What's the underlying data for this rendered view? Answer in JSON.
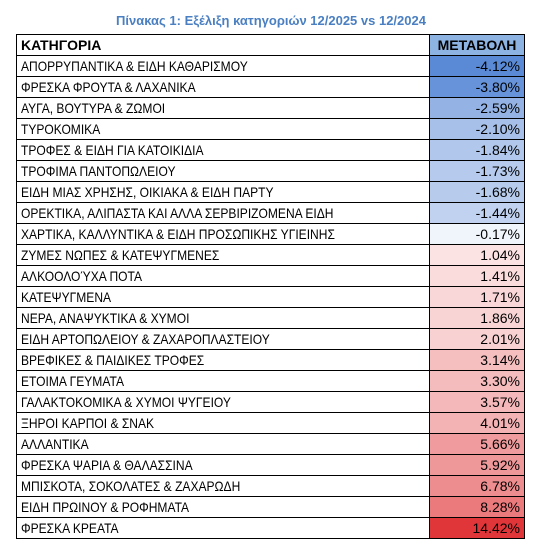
{
  "caption": "Πίνακας 1: Εξέλιξη κατηγοριών 12/2025 vs 12/2024",
  "table": {
    "headers": {
      "category": "ΚΑΤΗΓΟΡΙΑ",
      "change": "ΜΕΤΑΒΟΛΗ"
    },
    "rows": [
      {
        "category": "ΑΠΟΡΡΥΠΑΝΤΙΚΑ & ΕΙΔΗ ΚΑΘΑΡΙΣΜΟΥ",
        "change": "-4.12%",
        "value": -4.12
      },
      {
        "category": "ΦΡΕΣΚΑ ΦΡΟΥΤΑ & ΛΑΧΑΝΙΚΑ",
        "change": "-3.80%",
        "value": -3.8
      },
      {
        "category": "ΑΥΓΑ, ΒΟΥΤΥΡΑ & ΖΩΜΟΙ",
        "change": "-2.59%",
        "value": -2.59
      },
      {
        "category": "ΤΥΡΟΚΟΜΙΚΑ",
        "change": "-2.10%",
        "value": -2.1
      },
      {
        "category": "ΤΡΟΦΕΣ & ΕΙΔΗ ΓΙΑ ΚΑΤΟΙΚΙΔΙΑ",
        "change": "-1.84%",
        "value": -1.84
      },
      {
        "category": "ΤΡΟΦΙΜΑ ΠΑΝΤΟΠΩΛΕΙΟΥ",
        "change": "-1.73%",
        "value": -1.73
      },
      {
        "category": "ΕΙΔΗ ΜΙΑΣ ΧΡΗΣΗΣ, ΟΙΚΙΑΚΑ & ΕΙΔΗ ΠΑΡΤΥ",
        "change": "-1.68%",
        "value": -1.68
      },
      {
        "category": "ΟΡΕΚΤΙΚΑ, ΑΛΙΠΑΣΤΑ ΚΑΙ ΑΛΛΑ ΣΕΡΒΙΡΙΖΟΜΕΝΑ ΕΙΔΗ",
        "change": "-1.44%",
        "value": -1.44
      },
      {
        "category": "ΧΑΡΤΙΚΑ, ΚΑΛΛΥΝΤΙΚΑ & ΕΙΔΗ ΠΡΟΣΩΠΙΚΗΣ ΥΓΙΕΙΝΗΣ",
        "change": "-0.17%",
        "value": -0.17
      },
      {
        "category": "ΖΥΜΕΣ ΝΩΠΕΣ & ΚΑΤΕΨΥΓΜΕΝΕΣ",
        "change": "1.04%",
        "value": 1.04
      },
      {
        "category": "ΑΛΚΟΟΛΟΎΧΑ ΠΟΤΑ",
        "change": "1.41%",
        "value": 1.41
      },
      {
        "category": "ΚΑΤΕΨΥΓΜΕΝΑ",
        "change": "1.71%",
        "value": 1.71
      },
      {
        "category": "ΝΕΡΑ, ΑΝΑΨΥΚΤΙΚΑ & ΧΥΜΟΙ",
        "change": "1.86%",
        "value": 1.86
      },
      {
        "category": "ΕΙΔΗ ΑΡΤΟΠΩΛΕΙΟΥ & ΖΑΧΑΡΟΠΛΑΣΤΕΙΟΥ",
        "change": "2.01%",
        "value": 2.01
      },
      {
        "category": "ΒΡΕΦΙΚΕΣ & ΠΑΙΔΙΚΕΣ ΤΡΟΦΕΣ",
        "change": "3.14%",
        "value": 3.14
      },
      {
        "category": "ΕΤΟΙΜΑ ΓΕΥΜΑΤΑ",
        "change": "3.30%",
        "value": 3.3
      },
      {
        "category": "ΓΑΛΑΚΤΟΚΟΜΙΚΑ & ΧΥΜΟΙ ΨΥΓΕΙΟΥ",
        "change": "3.57%",
        "value": 3.57
      },
      {
        "category": "ΞΗΡΟΙ ΚΑΡΠΟΙ & ΣΝΑΚ",
        "change": "4.01%",
        "value": 4.01
      },
      {
        "category": "ΑΛΛΑΝΤΙΚΑ",
        "change": "5.66%",
        "value": 5.66
      },
      {
        "category": "ΦΡΕΣΚΑ ΨΑΡΙΑ & ΘΑΛΑΣΣΙΝΑ",
        "change": "5.92%",
        "value": 5.92
      },
      {
        "category": "ΜΠΙΣΚΟΤΑ, ΣΟΚΟΛΑΤΕΣ & ΖΑΧΑΡΩΔΗ",
        "change": "6.78%",
        "value": 6.78
      },
      {
        "category": "ΕΙΔΗ ΠΡΩΙΝΟΥ & ΡΟΦΗΜΑΤΑ",
        "change": "8.28%",
        "value": 8.28
      },
      {
        "category": "ΦΡΕΣΚΑ ΚΡΕΑΤΑ",
        "change": "14.42%",
        "value": 14.42
      }
    ]
  },
  "colors": {
    "caption": "#4a7fc1",
    "header_fill": "#8db3e2",
    "negative_max": "#5a8ad6",
    "positive_max": "#e0363a",
    "neutral": "#ffffff"
  }
}
